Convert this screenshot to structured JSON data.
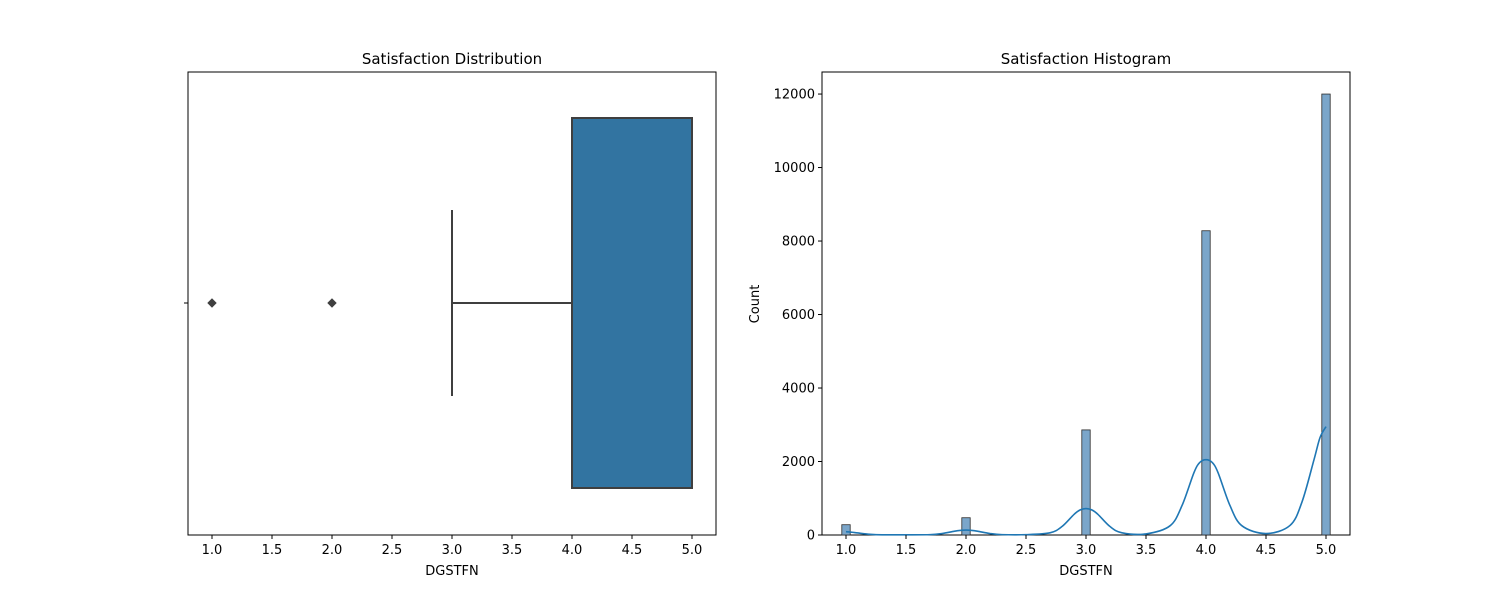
{
  "chart_data": [
    {
      "type": "box",
      "title": "Satisfaction Distribution",
      "xlabel": "DGSTFN",
      "ylabel": "",
      "xlim": [
        0.8,
        5.2
      ],
      "xticks": [
        "1.0",
        "1.5",
        "2.0",
        "2.5",
        "3.0",
        "3.5",
        "4.0",
        "4.5",
        "5.0"
      ],
      "grid": false,
      "box": {
        "q1": 4.0,
        "median": 4.0,
        "q3": 5.0,
        "whisker_low": 3.0,
        "whisker_high": 5.0,
        "outliers": [
          1.0,
          2.0
        ]
      },
      "box_color": "#3274a1"
    },
    {
      "type": "bar",
      "title": "Satisfaction Histogram",
      "xlabel": "DGSTFN",
      "ylabel": "Count",
      "xlim": [
        0.8,
        5.2
      ],
      "ylim": [
        0,
        12600
      ],
      "xticks": [
        "1.0",
        "1.5",
        "2.0",
        "2.5",
        "3.0",
        "3.5",
        "4.0",
        "4.5",
        "5.0"
      ],
      "yticks": [
        "0",
        "2000",
        "4000",
        "6000",
        "8000",
        "10000",
        "12000"
      ],
      "grid": false,
      "bins": [
        {
          "x": 1.0,
          "count": 280
        },
        {
          "x": 2.0,
          "count": 470
        },
        {
          "x": 3.0,
          "count": 2860
        },
        {
          "x": 4.0,
          "count": 8280
        },
        {
          "x": 5.0,
          "count": 12000
        }
      ],
      "kde": {
        "x": [
          1.0,
          1.05,
          1.1,
          1.2,
          1.3,
          1.5,
          1.7,
          1.8,
          1.9,
          1.95,
          2.0,
          2.05,
          2.1,
          2.2,
          2.3,
          2.5,
          2.7,
          2.8,
          2.9,
          2.95,
          3.0,
          3.05,
          3.1,
          3.2,
          3.3,
          3.5,
          3.7,
          3.8,
          3.9,
          3.95,
          4.0,
          4.05,
          4.1,
          4.2,
          4.3,
          4.5,
          4.7,
          4.8,
          4.9,
          4.95,
          5.0
        ],
        "y": [
          90,
          75,
          55,
          20,
          5,
          5,
          10,
          40,
          100,
          125,
          135,
          125,
          100,
          40,
          10,
          10,
          60,
          230,
          560,
          680,
          720,
          680,
          560,
          230,
          60,
          30,
          250,
          800,
          1700,
          1980,
          2050,
          1980,
          1700,
          800,
          250,
          40,
          260,
          900,
          2050,
          2650,
          2950
        ]
      },
      "bar_color": "#7ba6ca",
      "kde_color": "#1f77b4"
    }
  ]
}
